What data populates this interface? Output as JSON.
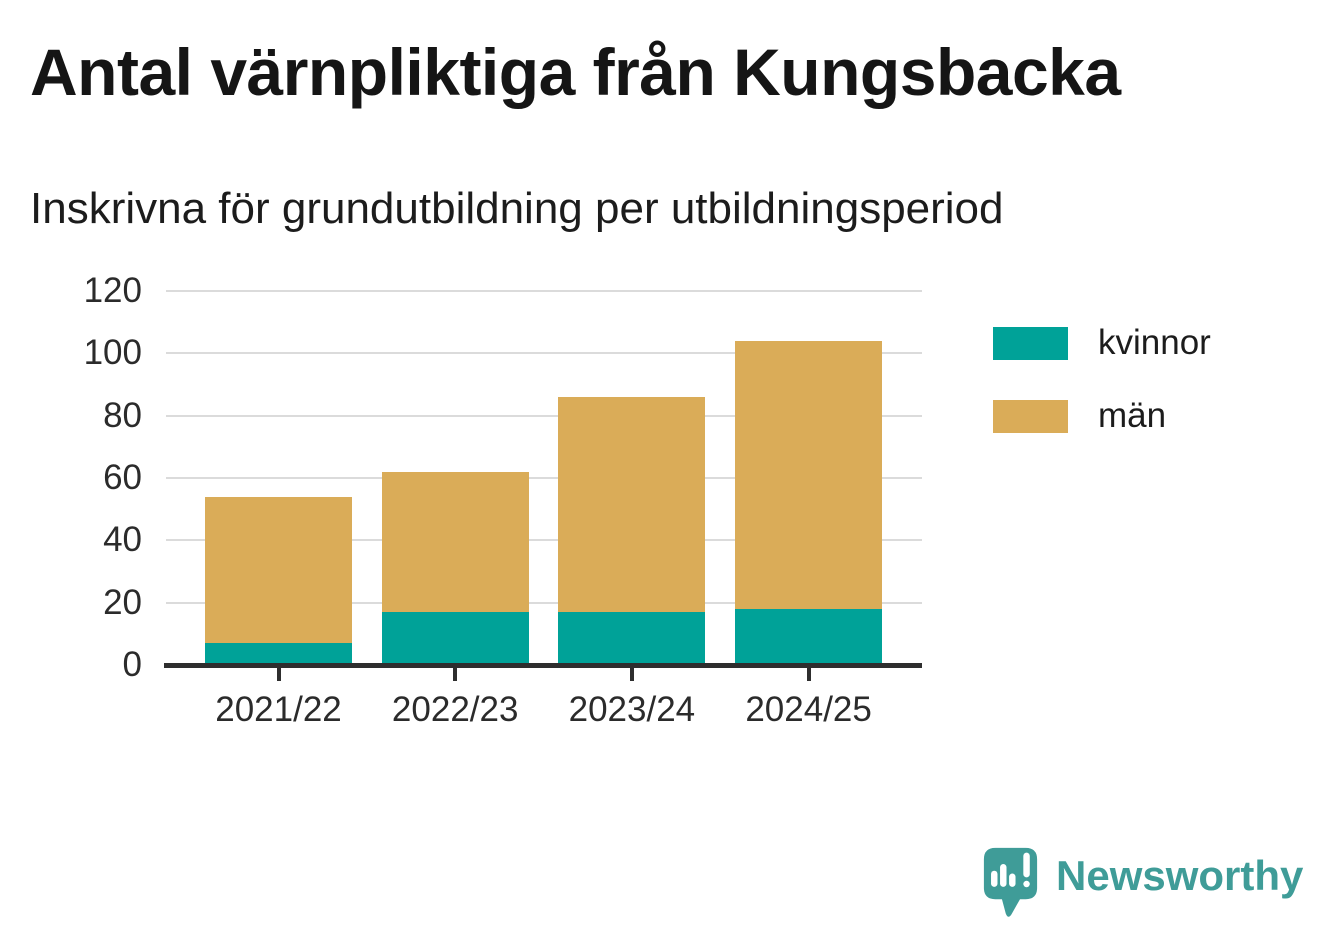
{
  "header": {
    "title": "Antal värnpliktiga från Kungsbacka",
    "subtitle": "Inskrivna för grundutbildning per utbildningsperiod"
  },
  "chart_data": {
    "type": "bar",
    "stacked": true,
    "title": "Antal värnpliktiga från Kungsbacka",
    "subtitle": "Inskrivna för grundutbildning per utbildningsperiod",
    "categories": [
      "2021/22",
      "2022/23",
      "2023/24",
      "2024/25"
    ],
    "series": [
      {
        "name": "kvinnor",
        "color": "#00a298",
        "values": [
          7,
          17,
          17,
          18
        ]
      },
      {
        "name": "män",
        "color": "#daac58",
        "values": [
          47,
          45,
          69,
          86
        ]
      }
    ],
    "totals": [
      54,
      62,
      86,
      104
    ],
    "xlabel": "",
    "ylabel": "",
    "ylim": [
      0,
      120
    ],
    "yticks": [
      0,
      20,
      40,
      60,
      80,
      100,
      120
    ],
    "grid": true,
    "gridline_color": "#dbdbdb",
    "axis_color": "#2e2e2e",
    "legend_position": "right"
  },
  "legend": {
    "items": [
      {
        "label": "kvinnor",
        "color": "#00a298"
      },
      {
        "label": "män",
        "color": "#daac58"
      }
    ]
  },
  "branding": {
    "name": "Newsworthy",
    "color": "#3f9c98",
    "icon": "newsworthy-speech-bubble-barchart-icon"
  }
}
